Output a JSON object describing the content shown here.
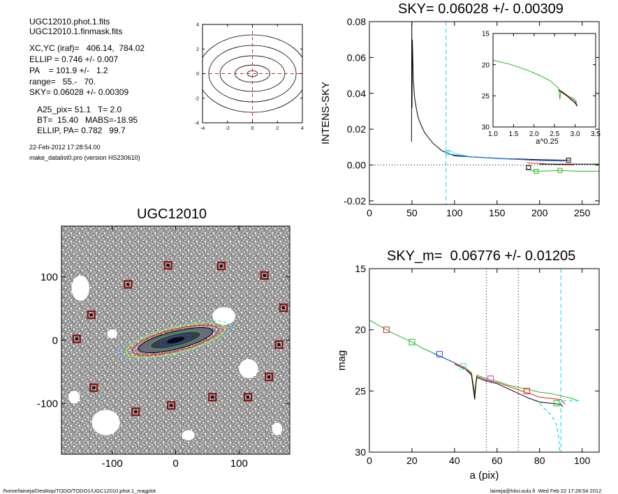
{
  "info": {
    "lines": [
      "UGC12010.phot.1.fits",
      "UGC12010.1.finmask.fits",
      "XC,YC (iraf)=   406.14,  784.02",
      "ELLIP = 0.746 +/- 0.007",
      "PA    = 101.9 +/-   1.2",
      "range=   55.-   70.",
      "SKY= 0.06028 +/- 0.00309",
      "A25_pix= 51.1   T= 2.0",
      "BT=  15.40   MABS=-18.95",
      "ELLIP, PA= 0.782   99.7"
    ],
    "date": "22-Feb-2012 17:28:54.00",
    "program": "make_datalist0.pro (version HS230610)"
  },
  "footer": {
    "path": "/home/laineja/Desktop/TODO/TODO1/UGC12010.phot.1_magplot",
    "user": "laineja@hiisi.oulu.fi  Wed Feb 22 17:28:54 2012"
  },
  "colors": {
    "black": "#000000",
    "red": "#e02020",
    "green": "#22b822",
    "blue": "#2050d0",
    "cyan": "#40e0f0",
    "magenta": "#c040c0",
    "mask_box": "#8b1010"
  },
  "chart_data": [
    {
      "id": "contour",
      "type": "contour",
      "xlim": [
        -4,
        4
      ],
      "ylim": [
        -4,
        4
      ],
      "xticks": [
        -4,
        -2,
        0,
        2,
        4
      ],
      "yticks": [
        -4,
        -2,
        0,
        2,
        4
      ],
      "crosshair": {
        "x": 0,
        "y": 0,
        "color": "red",
        "style": "dashed"
      },
      "contours": [
        {
          "rx": 0.4,
          "ry": 0.25
        },
        {
          "rx": 1.4,
          "ry": 0.7
        },
        {
          "rx": 2.6,
          "ry": 1.45
        },
        {
          "rx": 3.5,
          "ry": 2.3
        },
        {
          "rx": 4.4,
          "ry": 3.15
        }
      ]
    },
    {
      "id": "sky",
      "type": "line",
      "title": "SKY= 0.06028 +/- 0.00309",
      "xlabel": "",
      "ylabel": "INTENS-SKY",
      "xlim": [
        0,
        270
      ],
      "ylim": [
        -0.022,
        0.08
      ],
      "xticks": [
        0,
        50,
        100,
        150,
        200,
        250
      ],
      "yticks": [
        -0.02,
        0.0,
        0.02,
        0.04,
        0.06,
        0.08
      ],
      "ytick_labels": [
        "-0.02",
        "0.00",
        "0.02",
        "0.04",
        "0.06",
        "0.08"
      ],
      "zero_line": 0,
      "vline": {
        "x": 90,
        "color": "cyan",
        "style": "dashed"
      },
      "series": [
        {
          "color": "black",
          "x": [
            49.5,
            49.8,
            50.1,
            50.5,
            51.5,
            53,
            55,
            57,
            60,
            65,
            70,
            75,
            80,
            85,
            90,
            95,
            100,
            110,
            120,
            140,
            160,
            180,
            200,
            220,
            235
          ],
          "y": [
            0.013,
            0.08,
            0.032,
            0.07,
            0.048,
            0.038,
            0.032,
            0.027,
            0.023,
            0.018,
            0.015,
            0.012,
            0.01,
            0.008,
            0.007,
            0.006,
            0.0055,
            0.005,
            0.0045,
            0.004,
            0.0035,
            0.0033,
            0.003,
            0.0028,
            0.0027
          ]
        },
        {
          "color": "cyan",
          "x": [
            90,
            95,
            100,
            120,
            150,
            180,
            200,
            230
          ],
          "y": [
            0.0075,
            0.008,
            0.0065,
            0.0045,
            0.0035,
            0.003,
            0.0025,
            0.0025
          ]
        },
        {
          "color": "blue",
          "x": [
            90,
            100,
            120,
            150,
            180,
            200,
            230
          ],
          "y": [
            0.007,
            0.005,
            0.0045,
            0.0038,
            0.003,
            0.0025,
            0.0022
          ]
        },
        {
          "color": "red",
          "x": [
            185,
            200,
            220,
            240
          ],
          "y": [
            0.0012,
            0.0008,
            0.0003,
            0.0001
          ]
        },
        {
          "color": "green",
          "x": [
            185,
            195,
            225,
            245,
            255,
            270
          ],
          "y": [
            -0.002,
            -0.0035,
            -0.003,
            -0.0035,
            -0.0035,
            -0.0035
          ]
        },
        {
          "color": "black",
          "x": [
            200,
            230,
            270
          ],
          "y": [
            0.0005,
            0.0005,
            0.0005
          ]
        }
      ],
      "markers": [
        {
          "x": 92,
          "y": 0.007,
          "color": "cyan"
        },
        {
          "x": 187,
          "y": -0.0015,
          "color": "black"
        },
        {
          "x": 196,
          "y": -0.0035,
          "color": "green"
        },
        {
          "x": 224,
          "y": -0.003,
          "color": "green"
        },
        {
          "x": 234,
          "y": 0.0027,
          "color": "black"
        }
      ]
    },
    {
      "id": "inset",
      "type": "line",
      "xlabel": "a^0.25",
      "ylabel": "",
      "xlim": [
        1.0,
        3.5
      ],
      "ylim": [
        30,
        15
      ],
      "xticks": [
        1.0,
        1.5,
        2.0,
        2.5,
        3.0,
        3.5
      ],
      "xtick_labels": [
        "1.0",
        "1.5",
        "2.0",
        "2.5",
        "3.0",
        "3.5"
      ],
      "yticks": [
        15,
        20,
        25,
        30
      ],
      "series": [
        {
          "color": "green",
          "x": [
            1.0,
            1.4,
            1.8,
            2.1,
            2.4,
            2.6,
            2.63,
            2.65,
            2.7,
            2.8,
            2.9,
            3.0
          ],
          "y": [
            19.3,
            19.9,
            20.8,
            21.6,
            22.6,
            23.8,
            25.6,
            24.3,
            24.6,
            25.0,
            25.5,
            26.2
          ]
        },
        {
          "color": "red",
          "x": [
            2.6,
            2.7,
            2.8,
            2.9,
            3.0,
            3.05
          ],
          "y": [
            24.0,
            24.4,
            24.9,
            25.3,
            25.8,
            26.5
          ]
        },
        {
          "color": "black",
          "x": [
            2.6,
            2.7,
            2.8,
            2.9,
            3.0,
            3.05
          ],
          "y": [
            24.1,
            24.5,
            25.0,
            25.6,
            26.1,
            26.7
          ]
        },
        {
          "color": "cyan",
          "x": [
            2.9,
            3.0,
            3.05
          ],
          "y": [
            25.2,
            25.6,
            26.0
          ]
        }
      ]
    },
    {
      "id": "image",
      "type": "scatter",
      "title": "UGC12010",
      "xlim": [
        -180,
        180
      ],
      "ylim": [
        -180,
        180
      ],
      "xticks": [
        -100,
        0,
        100
      ],
      "yticks": [
        -100,
        0,
        100
      ],
      "galaxy": {
        "x": 0,
        "y": 0,
        "pa_deg": 14,
        "isophotes": [
          {
            "rx": 90,
            "ry": 22,
            "color": "cyan"
          },
          {
            "rx": 80,
            "ry": 20,
            "color": "yellow"
          },
          {
            "rx": 70,
            "ry": 17,
            "color": "red"
          },
          {
            "rx": 60,
            "ry": 14,
            "color": "black"
          },
          {
            "rx": 42,
            "ry": 10,
            "color": "green"
          },
          {
            "rx": 25,
            "ry": 6,
            "color": "blue"
          }
        ]
      },
      "mask_boxes": [
        {
          "x": -12,
          "y": 118
        },
        {
          "x": 72,
          "y": 117
        },
        {
          "x": -75,
          "y": 88
        },
        {
          "x": 140,
          "y": 102
        },
        {
          "x": -133,
          "y": 40
        },
        {
          "x": 170,
          "y": 51
        },
        {
          "x": -156,
          "y": 2
        },
        {
          "x": 163,
          "y": -7
        },
        {
          "x": 147,
          "y": -58
        },
        {
          "x": -129,
          "y": -75
        },
        {
          "x": 58,
          "y": -90
        },
        {
          "x": 114,
          "y": -90
        },
        {
          "x": -7,
          "y": -103
        },
        {
          "x": -63,
          "y": -113
        }
      ],
      "holes": [
        {
          "x": -150,
          "y": 82,
          "rx": 14,
          "ry": 20
        },
        {
          "x": 76,
          "y": 38,
          "rx": 18,
          "ry": 14
        },
        {
          "x": -110,
          "y": -130,
          "rx": 22,
          "ry": 20
        },
        {
          "x": 115,
          "y": -45,
          "rx": 15,
          "ry": 15
        },
        {
          "x": -160,
          "y": -90,
          "rx": 9,
          "ry": 10
        },
        {
          "x": 20,
          "y": -150,
          "rx": 10,
          "ry": 8
        },
        {
          "x": -100,
          "y": 10,
          "rx": 8,
          "ry": 7
        },
        {
          "x": 160,
          "y": -140,
          "rx": 8,
          "ry": 10
        }
      ]
    },
    {
      "id": "mag",
      "type": "line",
      "title": "SKY_m=  0.06776 +/- 0.01205",
      "xlabel": "a (pix)",
      "ylabel": "mag",
      "xlim": [
        0,
        108
      ],
      "ylim": [
        30,
        15
      ],
      "xticks": [
        0,
        20,
        40,
        60,
        80,
        100
      ],
      "yticks": [
        15,
        20,
        25,
        30
      ],
      "vlines": [
        {
          "x": 55,
          "color": "black",
          "style": "dotted"
        },
        {
          "x": 70,
          "color": "black",
          "style": "dotted"
        },
        {
          "x": 90,
          "color": "cyan",
          "style": "dashed"
        }
      ],
      "series": [
        {
          "color": "green",
          "x": [
            0,
            5,
            10,
            15,
            20,
            25,
            30,
            35,
            40,
            45,
            48,
            49.5,
            50,
            50.5,
            52,
            55,
            60,
            65,
            70,
            75,
            80,
            85,
            90,
            95,
            98
          ],
          "y": [
            19.2,
            19.7,
            20.2,
            20.6,
            21.0,
            21.5,
            21.9,
            22.3,
            22.7,
            23.1,
            23.5,
            25.2,
            24.4,
            23.7,
            23.8,
            24.0,
            24.2,
            24.5,
            24.7,
            24.9,
            25.1,
            25.2,
            25.4,
            25.6,
            25.8
          ]
        },
        {
          "color": "red",
          "x": [
            40,
            45,
            48,
            49.5,
            50,
            50.5,
            52,
            55,
            60,
            65,
            70,
            75,
            80,
            85,
            90,
            92
          ],
          "y": [
            22.7,
            23.1,
            23.6,
            25.5,
            24.5,
            23.8,
            23.9,
            24.1,
            24.3,
            24.6,
            24.9,
            25.2,
            25.5,
            25.6,
            25.7,
            26.1
          ]
        },
        {
          "color": "black",
          "x": [
            40,
            45,
            48,
            49.5,
            50,
            50.5,
            52,
            55,
            60,
            65,
            70,
            75,
            80,
            85,
            90,
            91
          ],
          "y": [
            22.8,
            23.2,
            23.7,
            25.7,
            24.6,
            23.9,
            24.0,
            24.2,
            24.4,
            24.8,
            25.2,
            25.6,
            25.9,
            26.0,
            26.1,
            26.3
          ]
        },
        {
          "color": "blue",
          "x": [
            30,
            35,
            40
          ],
          "y": [
            21.9,
            22.3,
            22.7
          ]
        },
        {
          "color": "cyan",
          "x": [
            88,
            90,
            95,
            100
          ],
          "y": [
            25.8,
            25.8,
            25.8,
            25.8
          ]
        },
        {
          "color": "cyan",
          "x": [
            80,
            82,
            84,
            86,
            88,
            89,
            89.5
          ],
          "y": [
            26.0,
            26.4,
            26.7,
            27.1,
            27.8,
            28.8,
            30
          ]
        }
      ],
      "markers": [
        {
          "x": 8,
          "y": 20.0,
          "color": "red"
        },
        {
          "x": 20,
          "y": 21.0,
          "color": "green"
        },
        {
          "x": 33,
          "y": 22.0,
          "color": "blue"
        },
        {
          "x": 44,
          "y": 23.0,
          "color": "cyan"
        },
        {
          "x": 57,
          "y": 24.0,
          "color": "magenta"
        },
        {
          "x": 74,
          "y": 25.0,
          "color": "red"
        },
        {
          "x": 88,
          "y": 26.0,
          "color": "green"
        }
      ]
    }
  ]
}
